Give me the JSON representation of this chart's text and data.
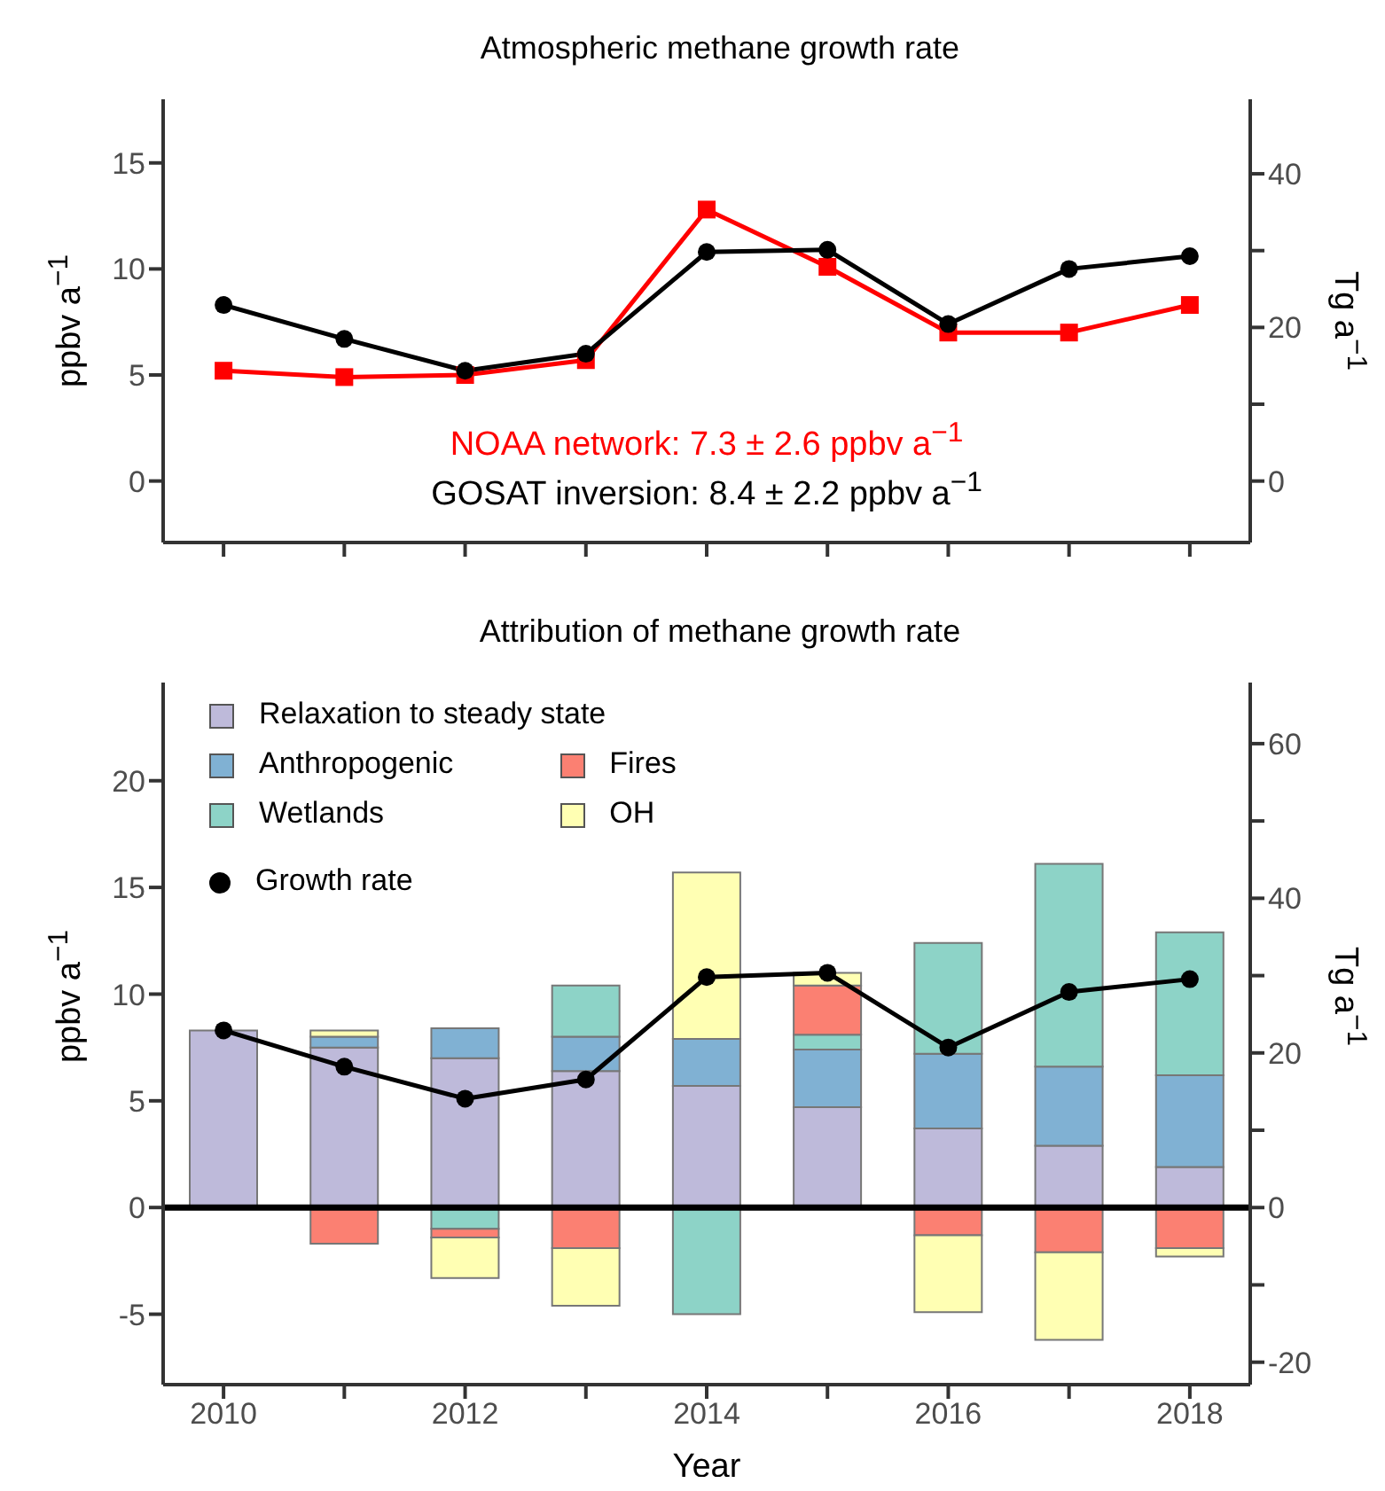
{
  "chart_data": [
    {
      "type": "line",
      "title": "Atmospheric methane growth rate",
      "ylabel": "ppbv a$^{−1}$",
      "y2label": "Tg a$^{−1}$",
      "categories": [
        "2010",
        null,
        "2012",
        null,
        "2014",
        null,
        "2016",
        null,
        "2018"
      ],
      "series": [
        {
          "color": "#ff0000",
          "marker": "square",
          "values": [
            5.2,
            4.9,
            5.0,
            5.7,
            12.8,
            10.1,
            7.0,
            7.0,
            8.3
          ]
        },
        {
          "color": "#000000",
          "marker": "circle",
          "values": [
            8.3,
            6.7,
            5.2,
            6.0,
            10.8,
            10.9,
            7.4,
            10.0,
            10.6
          ]
        }
      ],
      "ylim": [
        -2.9,
        18
      ],
      "yticks": [
        0,
        5,
        10,
        15
      ],
      "y2lim": [
        -8,
        49.7
      ],
      "y2ticks": [
        0,
        {
          "value": 10,
          "label": null
        },
        20,
        {
          "value": 30,
          "label": null
        },
        40
      ],
      "tick_labels": "y",
      "annotations": [
        "NOAA network: 7.3 ± 2.6 ppbv a$^{−1}$",
        "GOSAT inversion: 8.4 ± 2.2 ppbv a$^{−1}$"
      ]
    },
    {
      "type": "bar",
      "title": "Attribution of methane growth rate",
      "xlabel": "Year",
      "ylabel": "ppbv a$^{−1}$",
      "y2label": "Tg a$^{−1}$",
      "categories": [
        "2010",
        null,
        "2012",
        null,
        "2014",
        null,
        "2016",
        null,
        "2018"
      ],
      "stacked": true,
      "series": [
        {
          "name": "Relaxation to steady state",
          "color": "#bebada",
          "values": [
            8.3,
            7.5,
            7.0,
            6.4,
            5.7,
            4.7,
            3.7,
            2.9,
            1.9
          ]
        },
        {
          "name": "Anthropogenic",
          "color": "#80b1d3",
          "values": [
            null,
            0.5,
            1.4,
            1.6,
            2.2,
            2.7,
            3.5,
            3.7,
            4.3
          ]
        },
        {
          "name": "Wetlands",
          "color": "#8dd3c7",
          "values": [
            null,
            null,
            -1.0,
            2.4,
            -5.0,
            0.7,
            5.2,
            9.5,
            6.7
          ]
        },
        {
          "name": "Fires",
          "color": "#fb8072",
          "values": [
            null,
            -1.7,
            -0.4,
            -1.9,
            null,
            2.3,
            -1.3,
            -2.1,
            -1.9
          ]
        },
        {
          "name": "OH",
          "color": "#ffffb3",
          "values": [
            null,
            0.3,
            -1.9,
            -2.7,
            7.8,
            0.6,
            -3.6,
            -4.1,
            -0.4
          ]
        },
        {
          "name": "Growth rate",
          "type": "line",
          "color": "#000000",
          "marker": "circle",
          "values": [
            8.3,
            6.6,
            5.1,
            6.0,
            10.8,
            11.0,
            7.5,
            10.1,
            10.7
          ]
        }
      ],
      "ylim": [
        -8.3,
        24.6
      ],
      "yticks": [
        -5,
        0,
        5,
        10,
        15,
        20
      ],
      "y2lim": [
        -22.9,
        67.9
      ],
      "y2ticks": [
        -20,
        {
          "value": -10,
          "label": null
        },
        0,
        {
          "value": 10,
          "label": null
        },
        20,
        {
          "value": 30,
          "label": null
        },
        40,
        {
          "value": 50,
          "label": null
        },
        60
      ],
      "ref_lines": [
        {
          "axis": "y",
          "value": 0,
          "color": "#000000"
        }
      ],
      "legend": "top left"
    }
  ]
}
